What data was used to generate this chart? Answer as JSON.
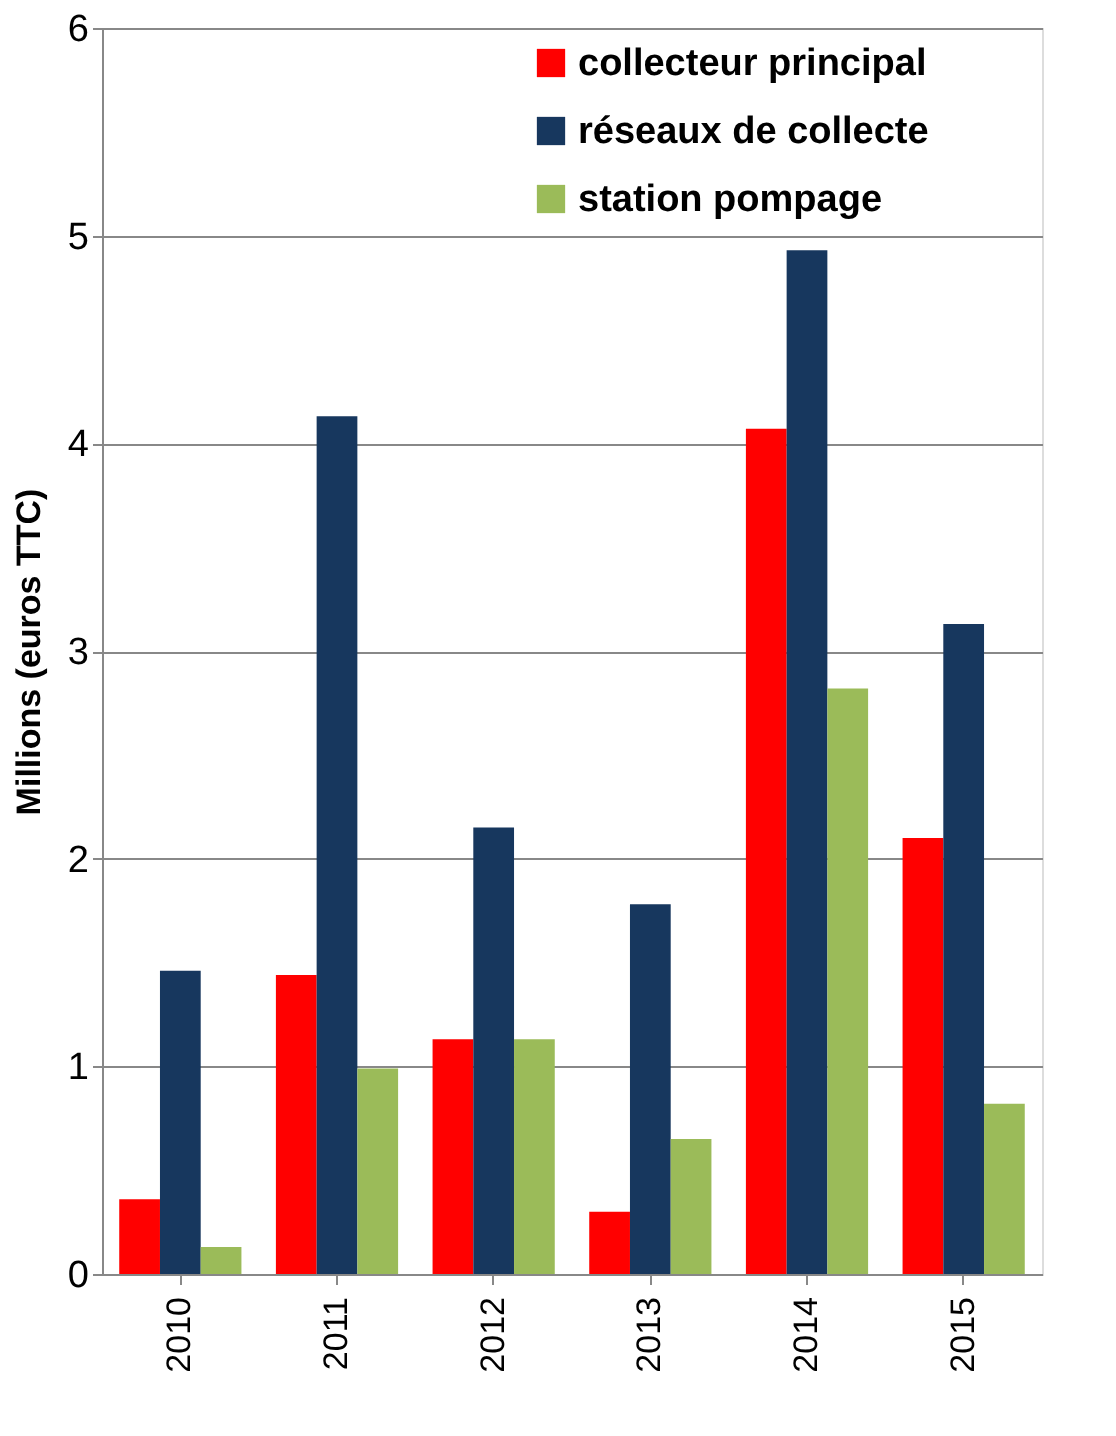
{
  "chart_data": {
    "type": "bar",
    "ylabel": "Millions  (euros TTC)",
    "categories": [
      "2010",
      "2011",
      "2012",
      "2013",
      "2014",
      "2015"
    ],
    "series": [
      {
        "name": "collecteur principal",
        "color": "#ff0000",
        "values": [
          0.36,
          1.44,
          1.13,
          0.3,
          4.07,
          2.1
        ]
      },
      {
        "name": "réseaux de collecte",
        "color": "#17375e",
        "values": [
          1.46,
          4.13,
          2.15,
          1.78,
          4.93,
          3.13
        ]
      },
      {
        "name": "station pompage",
        "color": "#9bbb59",
        "values": [
          0.13,
          0.99,
          1.13,
          0.65,
          2.82,
          0.82
        ]
      }
    ],
    "ylim": [
      0,
      6
    ],
    "yticks": [
      0,
      1,
      2,
      3,
      4,
      5,
      6
    ],
    "grid": "y",
    "legend": "top"
  }
}
